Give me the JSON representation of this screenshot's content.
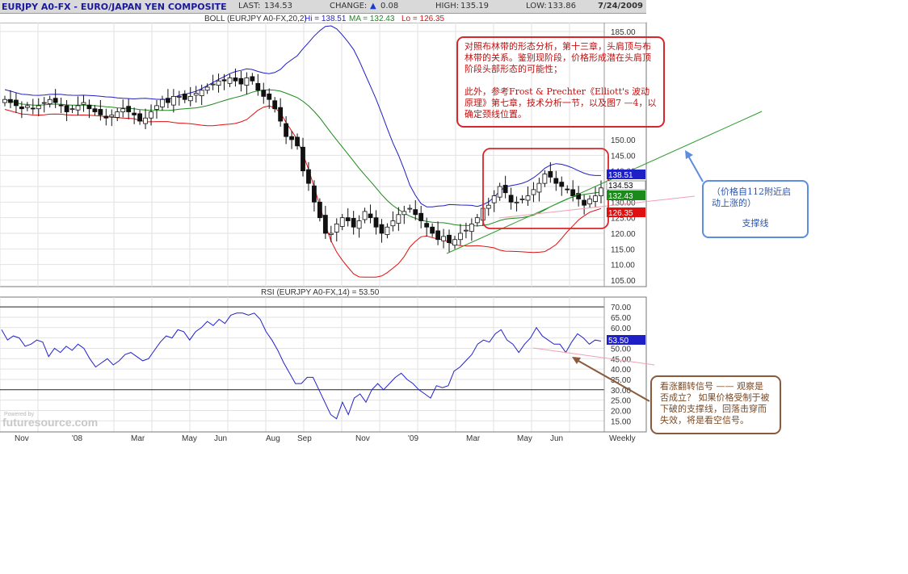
{
  "header": {
    "symbol": "EURJPY A0-FX - EURO/JAPAN YEN COMPOSITE",
    "last_label": "LAST:",
    "last_value": "134.53",
    "change_label": "CHANGE:",
    "change_value": "0.08",
    "high_label": "HIGH:",
    "high_value": "135.19",
    "low_label": "LOW:",
    "low_value": "133.86",
    "date": "7/24/2009"
  },
  "price_panel": {
    "legend_prefix": "BOLL (EURJPY A0-FX,20,2)",
    "legend_hi": "Hi = 138.51",
    "legend_ma": "MA = 132.43",
    "legend_lo": "Lo = 126.35",
    "y_ticks": [
      "105.00",
      "110.00",
      "115.00",
      "120.00",
      "125.00",
      "130.00",
      "135.00",
      "140.00",
      "145.00",
      "150.00",
      "185.00"
    ],
    "badge_hi": "138.51",
    "badge_last": "134.53",
    "badge_ma": "132.43",
    "badge_lo": "126.35"
  },
  "rsi_panel": {
    "legend": "RSI (EURJPY A0-FX,14) = 53.50",
    "y_ticks": [
      "15.00",
      "20.00",
      "25.00",
      "30.00",
      "35.00",
      "40.00",
      "45.00",
      "50.00",
      "55.00",
      "60.00",
      "65.00",
      "70.00"
    ],
    "badge": "53.50",
    "watermark": "futuresource.com",
    "watermark_small": "Powered by"
  },
  "x_axis": {
    "labels": [
      "Nov",
      "'08",
      "Mar",
      "May",
      "Jun",
      "Aug",
      "Sep",
      "Nov",
      "'09",
      "Mar",
      "May",
      "Jun"
    ],
    "period": "Weekly"
  },
  "annotations": {
    "main_p1": "对照布林带的形态分析，第十三章，头肩顶与布林带的关系。鉴别现阶段，价格形成潜在头肩顶阶段头部形态的可能性；",
    "main_p2": "此外，参考Frost & Prechter《Elliott's 波动原理》第七章，技术分析一节，以及图7 —4，以确定颈线位置。",
    "support_line1": "（价格自112附近启动上涨的）",
    "support_line2": "支撑线",
    "signal": "看涨翻转信号 —— 观察是否成立？ 如果价格受制于被下破的支撑线，回落击穿而失效，将是看空信号。"
  },
  "colors": {
    "upper_band": "#1f1fc8",
    "middle_band": "#1a8a1a",
    "lower_band": "#e01010",
    "rsi_line": "#2222cc",
    "annotation_red": "#d9262a",
    "annotation_blue": "#5b8de0",
    "annotation_brown": "#8a5a3a",
    "support_line": "#2e9a2e",
    "rsi_support": "#f0a0b0"
  },
  "chart_data": [
    {
      "type": "candlestick",
      "title": "EURJPY A0-FX - EURO/JAPAN YEN COMPOSITE",
      "period": "Weekly",
      "x_range": [
        "2007-11",
        "2009-07-24"
      ],
      "y_axis": "price (JPY)",
      "y_ticks": [
        105,
        110,
        115,
        120,
        125,
        130,
        135,
        140,
        145,
        150,
        185
      ],
      "ylim": [
        102,
        187
      ],
      "closes": [
        163,
        162,
        161,
        160,
        161,
        160,
        161,
        162,
        163,
        162,
        161,
        159,
        160,
        161,
        162,
        160,
        159,
        158,
        157,
        158,
        159,
        160,
        159,
        158,
        156,
        157,
        159,
        161,
        163,
        162,
        164,
        164,
        163,
        164,
        165,
        166,
        167,
        168,
        169,
        169,
        170,
        169,
        168,
        170,
        169,
        166,
        164,
        163,
        160,
        156,
        151,
        150,
        148,
        140,
        136,
        130,
        125,
        120,
        120,
        123,
        125,
        124,
        122,
        124,
        127,
        125,
        122,
        120,
        122,
        124,
        126,
        127,
        128,
        126,
        124,
        122,
        120,
        118,
        119,
        117,
        118,
        120,
        121,
        123,
        125,
        128,
        129,
        132,
        135,
        133,
        130,
        130,
        131,
        132,
        134,
        136,
        139,
        138,
        136,
        135,
        134,
        132,
        131,
        129,
        131,
        132,
        134.53
      ],
      "series": [
        {
          "name": "Hi",
          "last": 138.51
        },
        {
          "name": "MA",
          "last": 132.43
        },
        {
          "name": "Lo",
          "last": 126.35
        }
      ],
      "bollinger": {
        "period": 20,
        "stdev": 2
      }
    },
    {
      "type": "line",
      "title": "RSI (EURJPY A0-FX,14)",
      "y_ticks": [
        15,
        20,
        25,
        30,
        35,
        40,
        45,
        50,
        55,
        60,
        65,
        70
      ],
      "ylim": [
        12,
        72
      ],
      "reference_lines": [
        30,
        70
      ],
      "last": 53.5,
      "values": [
        59,
        54,
        56,
        55,
        51,
        52,
        54,
        53,
        46,
        50,
        48,
        51,
        49,
        52,
        50,
        45,
        41,
        43,
        45,
        42,
        44,
        47,
        48,
        46,
        44,
        45,
        49,
        53,
        56,
        55,
        59,
        58,
        54,
        58,
        60,
        63,
        61,
        64,
        62,
        66,
        67,
        67,
        66,
        67,
        64,
        58,
        54,
        49,
        43,
        38,
        33,
        33,
        36,
        36,
        30,
        24,
        18,
        16,
        24,
        18,
        26,
        28,
        24,
        30,
        33,
        30,
        33,
        36,
        38,
        35,
        33,
        30,
        28,
        26,
        32,
        31,
        32,
        39,
        41,
        44,
        47,
        52,
        54,
        53,
        57,
        59,
        54,
        52,
        48,
        52,
        55,
        60,
        56,
        54,
        52,
        52,
        48,
        53,
        57,
        55,
        52,
        54,
        53.5
      ]
    }
  ]
}
